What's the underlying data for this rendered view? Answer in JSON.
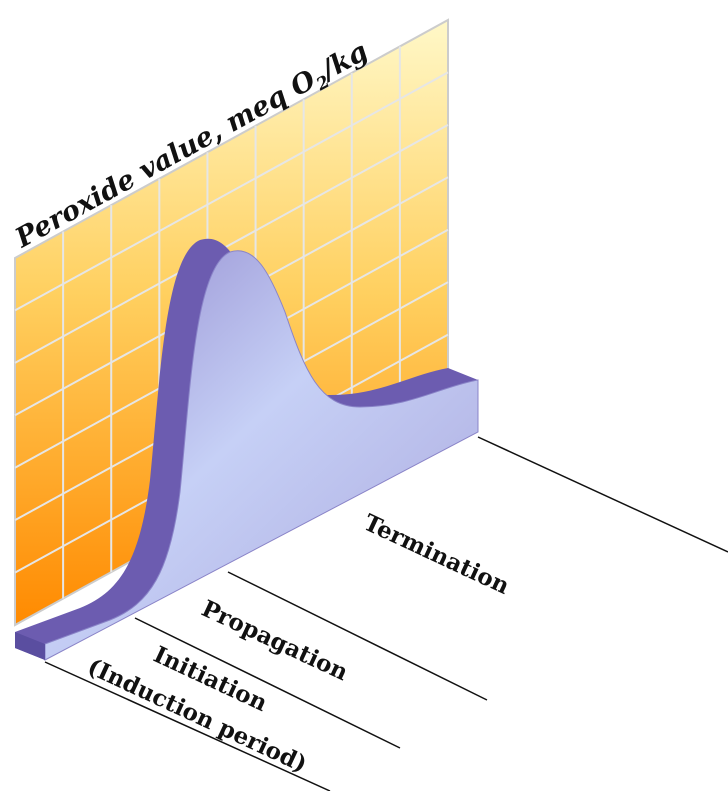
{
  "axis_label": {
    "before": "Peroxide value, meq O",
    "subscript": "2",
    "after": "/kg"
  },
  "phases": [
    "Termination",
    "Propagation",
    "Initiation",
    "(Induction period)"
  ]
}
